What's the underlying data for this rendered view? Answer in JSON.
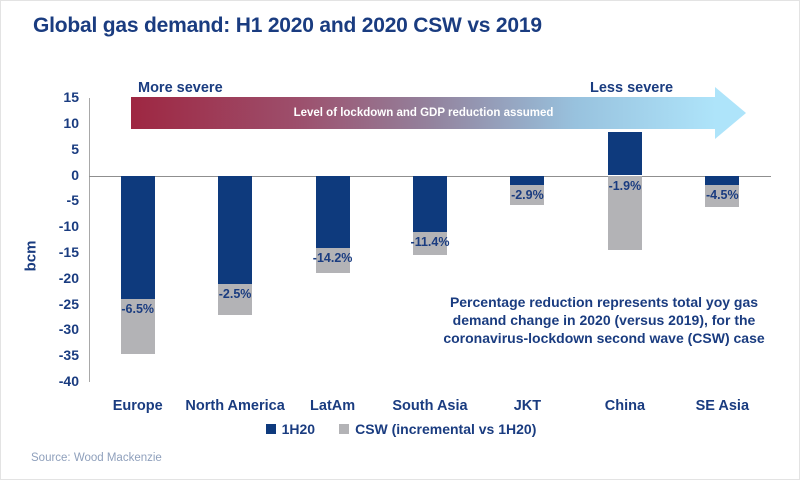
{
  "title": "Global gas demand: H1 2020 and 2020 CSW vs 2019",
  "source": "Source: Wood Mackenzie",
  "arrow": {
    "more_severe": "More severe",
    "less_severe": "Less severe",
    "label": "Level of lockdown and GDP reduction assumed",
    "gradient": [
      "#9e2742",
      "#9d4e6b",
      "#93849f",
      "#98c2de",
      "#aee4fa"
    ]
  },
  "annotation_lines": [
    "Percentage reduction represents total yoy gas",
    "demand change in 2020 (versus 2019), for the",
    "coronavirus-lockdown second wave (CSW) case"
  ],
  "legend": [
    {
      "label": "1H20",
      "color": "#0e3a7d"
    },
    {
      "label": "CSW (incremental vs 1H20)",
      "color": "#b3b3b6"
    }
  ],
  "chart_data": {
    "type": "bar",
    "stacked": true,
    "title": "Global gas demand: H1 2020 and 2020 CSW vs 2019",
    "xlabel": "",
    "ylabel": "bcm",
    "ylim": [
      -40,
      15
    ],
    "ytick_step": 5,
    "grid": false,
    "legend_position": "bottom",
    "categories": [
      "Europe",
      "North America",
      "LatAm",
      "South Asia",
      "JKT",
      "China",
      "SE Asia"
    ],
    "series": [
      {
        "name": "1H20",
        "color": "#0e3a7d",
        "values": [
          -24,
          -21,
          -14,
          -11,
          -1.8,
          8.5,
          -1.8
        ]
      },
      {
        "name": "CSW (incremental vs 1H20)",
        "color": "#b3b3b6",
        "values": [
          -10.5,
          -6,
          -5,
          -4.5,
          -4,
          -14.5,
          -4.3
        ]
      }
    ],
    "bar_labels": [
      "-6.5%",
      "-2.5%",
      "-14.2%",
      "-11.4%",
      "-2.9%",
      "-1.9%",
      "-4.5%"
    ]
  }
}
